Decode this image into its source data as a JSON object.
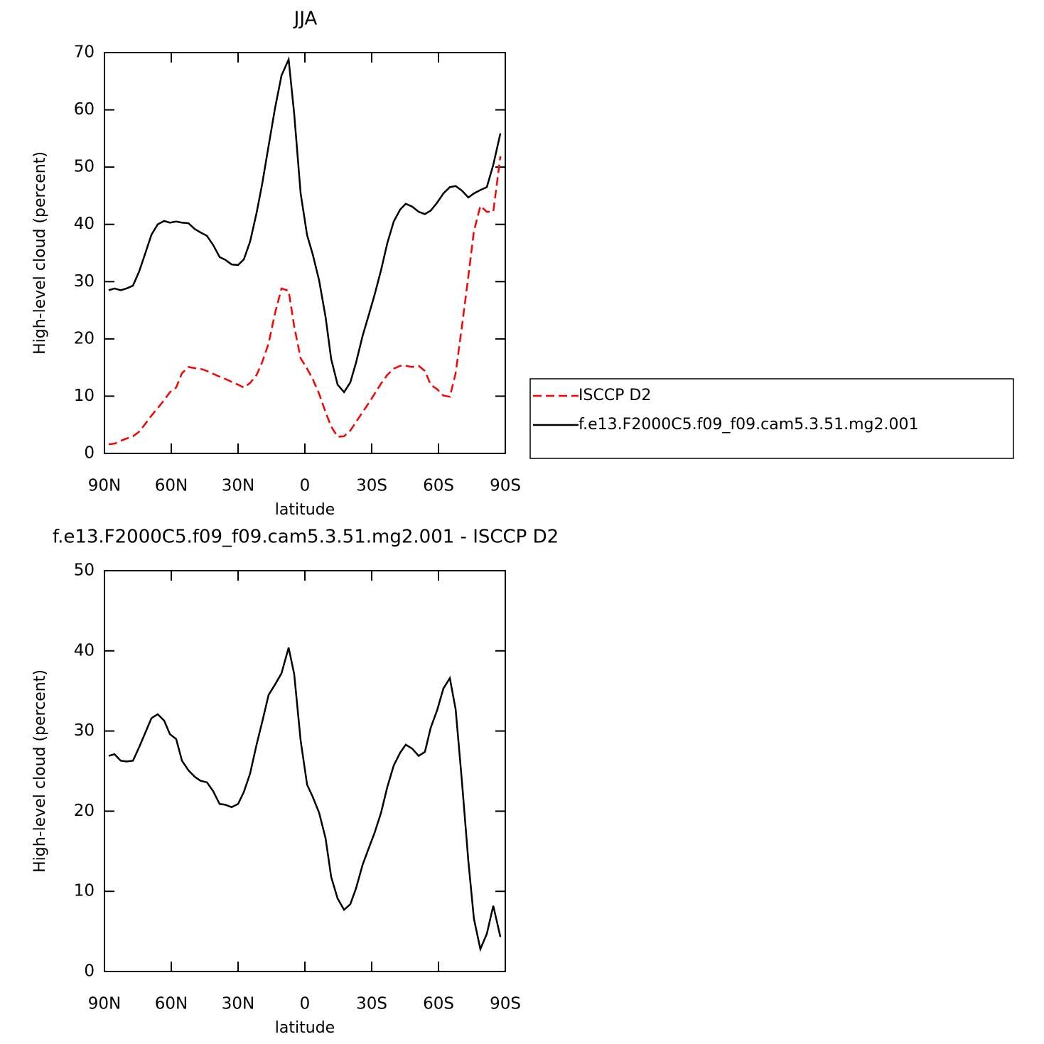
{
  "chart_data": [
    {
      "type": "line",
      "title": "JJA",
      "xlabel": "latitude",
      "ylabel": "High-level cloud (percent)",
      "x": [
        88.1,
        85.5,
        82.7,
        80.1,
        77.2,
        74.4,
        71.8,
        68.9,
        66.1,
        63.2,
        60.6,
        57.8,
        55.2,
        52.3,
        49.5,
        46.9,
        44.0,
        41.2,
        38.3,
        35.7,
        32.9,
        30.0,
        27.4,
        24.6,
        21.7,
        19.2,
        16.3,
        13.4,
        10.5,
        7.3,
        4.8,
        1.9,
        -1.0,
        -3.5,
        -6.4,
        -9.3,
        -11.8,
        -14.7,
        -17.6,
        -20.4,
        -23.0,
        -25.9,
        -28.7,
        -31.3,
        -34.2,
        -37.0,
        -39.9,
        -42.8,
        -45.3,
        -48.2,
        -51.1,
        -53.9,
        -56.5,
        -59.4,
        -62.2,
        -65.1,
        -67.7,
        -70.5,
        -73.4,
        -75.9,
        -78.8,
        -81.7,
        -84.6,
        -87.8
      ],
      "series": [
        {
          "name": "ISCCP D2",
          "color": "#ff0000",
          "style": "dashed",
          "values": [
            1.6,
            1.7,
            2.2,
            2.6,
            3.0,
            3.8,
            5.1,
            6.6,
            7.9,
            9.3,
            10.7,
            11.5,
            14.0,
            15.1,
            14.9,
            14.8,
            14.4,
            13.9,
            13.4,
            13.0,
            12.5,
            12.0,
            11.5,
            12.3,
            13.7,
            15.9,
            19.2,
            24.5,
            28.8,
            28.4,
            22.2,
            16.6,
            14.8,
            13.0,
            10.4,
            7.2,
            4.7,
            2.9,
            3.0,
            4.0,
            5.5,
            7.2,
            8.8,
            10.4,
            12.2,
            13.7,
            14.8,
            15.3,
            15.3,
            15.1,
            15.3,
            14.4,
            12.0,
            11.2,
            10.1,
            9.9,
            14.0,
            22.1,
            30.9,
            38.8,
            43.2,
            42.2,
            42.2,
            51.9
          ]
        },
        {
          "name": "f.e13.F2000C5.f09_f09.cam5.3.51.mg2.001",
          "color": "#000000",
          "style": "solid",
          "values": [
            28.5,
            28.8,
            28.5,
            28.8,
            29.3,
            31.8,
            34.8,
            38.2,
            40.0,
            40.6,
            40.3,
            40.5,
            40.3,
            40.2,
            39.2,
            38.6,
            38.0,
            36.4,
            34.3,
            33.8,
            33.0,
            32.9,
            33.9,
            37.0,
            42.0,
            47.0,
            53.7,
            60.3,
            66.0,
            68.8,
            59.3,
            45.4,
            38.1,
            34.8,
            30.2,
            23.8,
            16.5,
            12.0,
            10.7,
            12.4,
            15.9,
            20.5,
            24.2,
            27.7,
            32.0,
            36.7,
            40.5,
            42.6,
            43.6,
            43.1,
            42.2,
            41.8,
            42.4,
            43.8,
            45.4,
            46.5,
            46.7,
            45.9,
            44.7,
            45.4,
            46.0,
            46.5,
            50.4,
            55.9
          ]
        }
      ],
      "xlim": [
        90,
        -90
      ],
      "ylim": [
        0,
        70
      ],
      "xticks": [
        {
          "value": 90,
          "label": "90N"
        },
        {
          "value": 60,
          "label": "60N"
        },
        {
          "value": 30,
          "label": "30N"
        },
        0,
        {
          "value": -30,
          "label": "30S"
        },
        {
          "value": -60,
          "label": "60S"
        },
        {
          "value": -90,
          "label": "90S"
        }
      ],
      "yticks": [
        0,
        10,
        20,
        30,
        40,
        50,
        60,
        70
      ],
      "legend": "right"
    },
    {
      "type": "line",
      "title": "f.e13.F2000C5.f09_f09.cam5.3.51.mg2.001 - ISCCP D2",
      "xlabel": "latitude",
      "ylabel": "High-level cloud (percent)",
      "x": [
        88.1,
        85.5,
        82.7,
        80.1,
        77.2,
        74.4,
        71.8,
        68.9,
        66.1,
        63.2,
        60.6,
        57.8,
        55.2,
        52.3,
        49.5,
        46.9,
        44.0,
        41.2,
        38.3,
        35.7,
        32.9,
        30.0,
        27.4,
        24.6,
        21.7,
        19.2,
        16.3,
        13.4,
        10.5,
        7.3,
        4.8,
        1.9,
        -1.0,
        -3.5,
        -6.4,
        -9.3,
        -11.8,
        -14.7,
        -17.6,
        -20.4,
        -23.0,
        -25.9,
        -28.7,
        -31.3,
        -34.2,
        -37.0,
        -39.9,
        -42.8,
        -45.3,
        -48.2,
        -51.1,
        -53.9,
        -56.5,
        -59.4,
        -62.2,
        -65.1,
        -67.7,
        -70.5,
        -73.4,
        -75.9,
        -78.8,
        -81.7,
        -84.6,
        -87.8
      ],
      "series": [
        {
          "color": "#000000",
          "style": "solid",
          "values": [
            26.9,
            27.1,
            26.3,
            26.2,
            26.3,
            28.0,
            29.7,
            31.6,
            32.1,
            31.3,
            29.6,
            29.0,
            26.3,
            25.1,
            24.3,
            23.8,
            23.6,
            22.5,
            20.9,
            20.8,
            20.5,
            20.9,
            22.4,
            24.7,
            28.3,
            31.1,
            34.5,
            35.8,
            37.2,
            40.4,
            37.1,
            28.8,
            23.3,
            21.8,
            19.8,
            16.6,
            11.8,
            9.1,
            7.7,
            8.4,
            10.4,
            13.3,
            15.4,
            17.3,
            19.8,
            23.0,
            25.7,
            27.3,
            28.3,
            27.8,
            26.9,
            27.4,
            30.4,
            32.6,
            35.3,
            36.6,
            32.7,
            23.8,
            13.8,
            6.6,
            2.8,
            4.7,
            8.2,
            4.3
          ]
        }
      ],
      "xlim": [
        90,
        -90
      ],
      "ylim": [
        0,
        50
      ],
      "xticks": [
        {
          "value": 90,
          "label": "90N"
        },
        {
          "value": 60,
          "label": "60N"
        },
        {
          "value": 30,
          "label": "30N"
        },
        0,
        {
          "value": -30,
          "label": "30S"
        },
        {
          "value": -60,
          "label": "60S"
        },
        {
          "value": -90,
          "label": "90S"
        }
      ],
      "yticks": [
        0,
        10,
        20,
        30,
        40,
        50
      ]
    }
  ]
}
